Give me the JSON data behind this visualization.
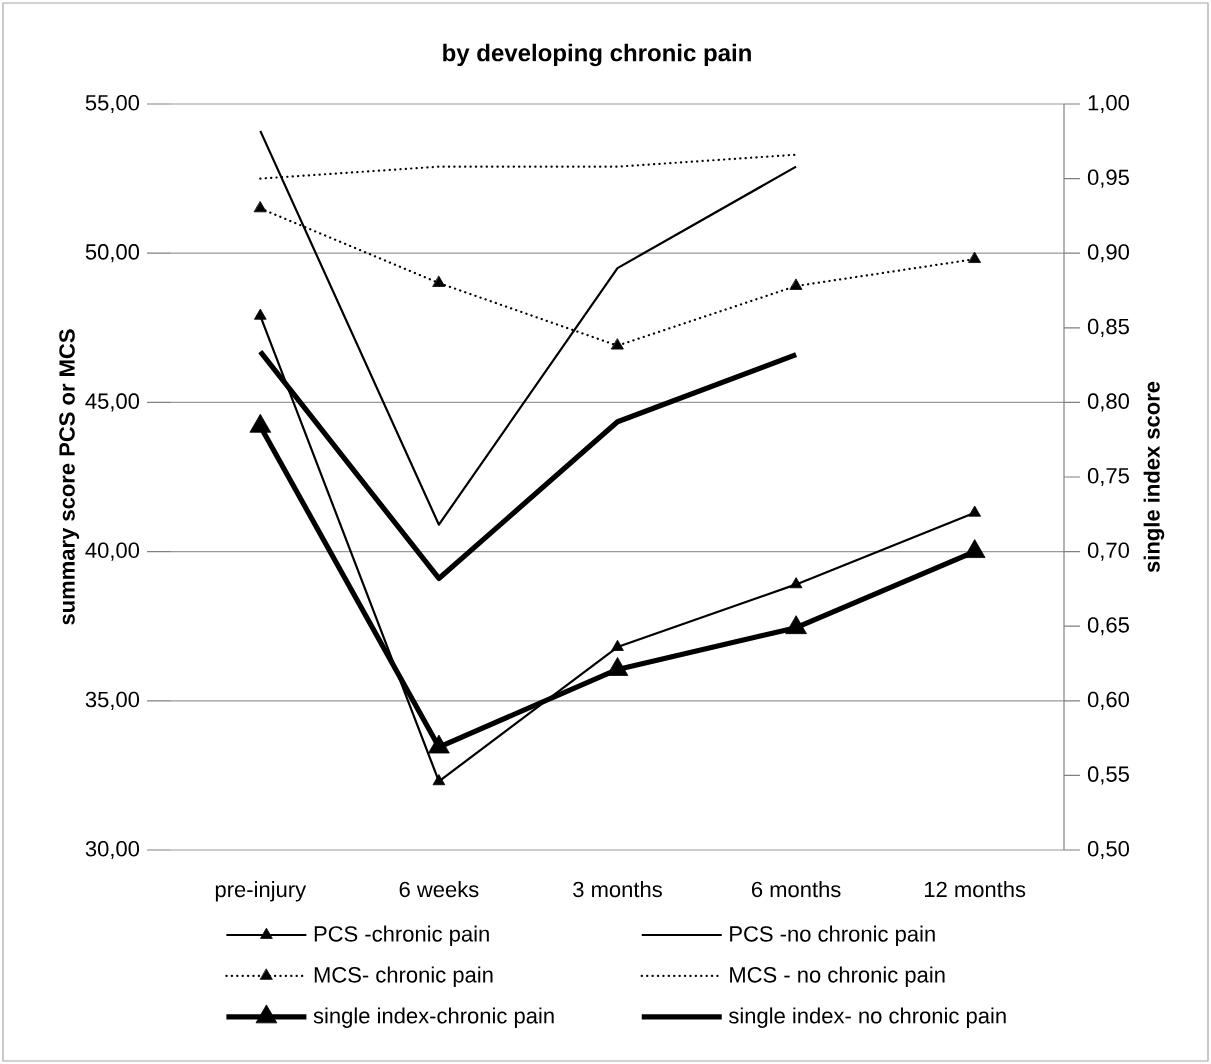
{
  "chart_data": {
    "type": "line",
    "title": "by developing chronic  pain",
    "ylabel": "summary score PCS or MCS",
    "y2label": "single index score",
    "categories": [
      "pre-injury",
      "6 weeks",
      "3 months",
      "6 months",
      "12 months"
    ],
    "series": [
      {
        "name": "PCS -chronic pain",
        "color": "#000000",
        "marker": "triangle",
        "line_style": "solid",
        "values": [
          47.9,
          32.3,
          36.8,
          38.9,
          41.3
        ]
      },
      {
        "name": "PCS -no chronic pain",
        "color": "#000000",
        "marker": "none",
        "line_style": "solid",
        "values": [
          54.1,
          40.9,
          49.5,
          52.9,
          null
        ]
      },
      {
        "name": "MCS- chronic pain",
        "color": "#000000",
        "marker": "triangle",
        "line_style": "dotted",
        "values": [
          51.5,
          49.0,
          46.9,
          48.9,
          49.8
        ]
      },
      {
        "name": "MCS - no chronic pain",
        "color": "#000000",
        "marker": "none",
        "line_style": "dotted",
        "values": [
          52.5,
          52.9,
          52.9,
          53.3,
          null
        ]
      },
      {
        "name": "single index-chronic pain",
        "color": "#000000",
        "marker": "triangle",
        "line_style": "solid",
        "axis": "y2",
        "values": [
          0.784,
          0.569,
          0.621,
          0.649,
          0.7
        ]
      },
      {
        "name": "single index- no chronic pain",
        "color": "#000000",
        "marker": "none",
        "line_style": "solid",
        "axis": "y2",
        "values": [
          0.834,
          0.682,
          0.787,
          0.832,
          null
        ]
      }
    ],
    "ylim": [
      30,
      55
    ],
    "yticks": [
      {
        "value": 30,
        "label": "30,00"
      },
      {
        "value": 35,
        "label": "35,00"
      },
      {
        "value": 40,
        "label": "40,00"
      },
      {
        "value": 45,
        "label": "45,00"
      },
      {
        "value": 50,
        "label": "50,00"
      },
      {
        "value": 55,
        "label": "55,00"
      }
    ],
    "y2lim": [
      0.5,
      1.0
    ],
    "y2ticks": [
      {
        "value": 0.5,
        "label": "0,50"
      },
      {
        "value": 0.55,
        "label": "0,55"
      },
      {
        "value": 0.6,
        "label": "0,60"
      },
      {
        "value": 0.65,
        "label": "0,65"
      },
      {
        "value": 0.7,
        "label": "0,70"
      },
      {
        "value": 0.75,
        "label": "0,75"
      },
      {
        "value": 0.8,
        "label": "0,80"
      },
      {
        "value": 0.85,
        "label": "0,85"
      },
      {
        "value": 0.9,
        "label": "0,90"
      },
      {
        "value": 0.95,
        "label": "0,95"
      },
      {
        "value": 1.0,
        "label": "1,00"
      }
    ],
    "grid": "y",
    "legend": "bottom"
  }
}
